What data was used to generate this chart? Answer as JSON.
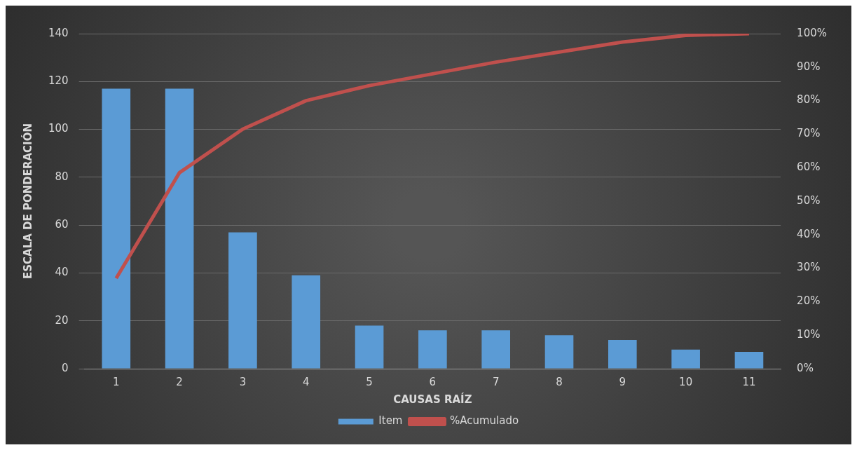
{
  "chart_data": {
    "type": "bar",
    "xlabel": "CAUSAS RAÍZ",
    "ylabel": "ESCALA DE PONDERACIÓN",
    "categories": [
      "1",
      "2",
      "3",
      "4",
      "5",
      "6",
      "7",
      "8",
      "9",
      "10",
      "11"
    ],
    "series": [
      {
        "name": "Item",
        "color": "#5b9bd5",
        "values": [
          117,
          117,
          57,
          39,
          18,
          16,
          16,
          14,
          12,
          8,
          7
        ]
      },
      {
        "name": "%Acumulado",
        "type": "line",
        "axis": "y2",
        "color": "#c0504d",
        "values": [
          27,
          58.5,
          71.5,
          80,
          84.5,
          88,
          91.5,
          94.5,
          97.5,
          99.5,
          100
        ]
      }
    ],
    "ylim": [
      0,
      140
    ],
    "yticks": [
      0,
      20,
      40,
      60,
      80,
      100,
      120,
      140
    ],
    "y2lim": [
      0,
      100
    ],
    "y2ticks": [
      {
        "value": 0,
        "label": "0%"
      },
      {
        "value": 10,
        "label": "10%"
      },
      {
        "value": 20,
        "label": "20%"
      },
      {
        "value": 30,
        "label": "30%"
      },
      {
        "value": 40,
        "label": "40%"
      },
      {
        "value": 50,
        "label": "50%"
      },
      {
        "value": 60,
        "label": "60%"
      },
      {
        "value": 70,
        "label": "70%"
      },
      {
        "value": 80,
        "label": "80%"
      },
      {
        "value": 90,
        "label": "90%"
      },
      {
        "value": 100,
        "label": "100%"
      }
    ],
    "grid": "y",
    "legend": "bottom",
    "marker": "none",
    "line_style": "solid"
  }
}
